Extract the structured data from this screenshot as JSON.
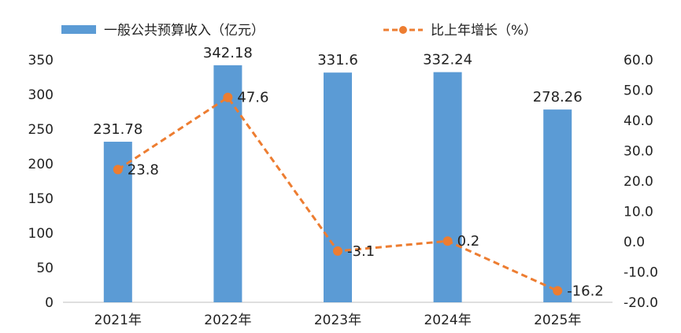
{
  "chart_data": {
    "type": "bar",
    "categories": [
      "2021年",
      "2022年",
      "2023年",
      "2024年",
      "2025年"
    ],
    "series": [
      {
        "name": "一般公共预算收入（亿元）",
        "type": "bar",
        "axis": "left",
        "color": "#5B9BD5",
        "values": [
          231.78,
          342.18,
          331.6,
          332.24,
          278.26
        ],
        "labels": [
          "231.78",
          "342.18",
          "331.6",
          "332.24",
          "278.26"
        ]
      },
      {
        "name": "比上年增长（%）",
        "type": "line",
        "axis": "right",
        "color": "#ED7D31",
        "line_style": "dashed",
        "values": [
          23.8,
          47.6,
          -3.1,
          0.2,
          -16.2
        ],
        "labels": [
          "23.8",
          "47.6",
          "-3.1",
          "0.2",
          "-16.2"
        ]
      }
    ],
    "y_left": {
      "ylim": [
        0,
        350
      ],
      "ticks": [
        "0",
        "50",
        "100",
        "150",
        "200",
        "250",
        "300",
        "350"
      ]
    },
    "y_right": {
      "ylim": [
        -20,
        60
      ],
      "ticks": [
        "-20.0",
        "-10.0",
        "0.0",
        "10.0",
        "20.0",
        "30.0",
        "40.0",
        "50.0",
        "60.0"
      ]
    },
    "legend_position": "top",
    "grid": false
  }
}
